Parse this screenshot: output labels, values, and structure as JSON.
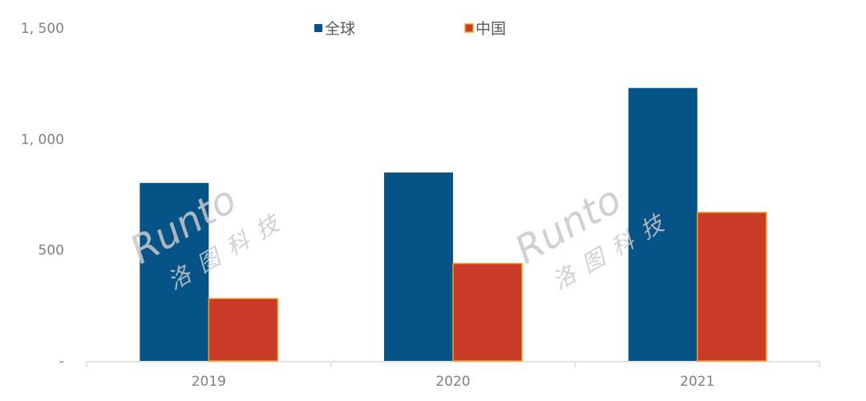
{
  "chart_data": {
    "type": "bar",
    "title": "",
    "xlabel": "",
    "ylabel": "",
    "categories": [
      "2019",
      "2020",
      "2021"
    ],
    "series": [
      {
        "name": "全球",
        "values": [
          802,
          849,
          1230
        ],
        "color": "#065487"
      },
      {
        "name": "中国",
        "values": [
          281,
          439,
          669
        ],
        "color": "#c93a28",
        "border": "#f0a020"
      }
    ],
    "ylim": [
      0,
      1500
    ],
    "yticks": [
      {
        "value": 0,
        "label": "-"
      },
      {
        "value": 500,
        "label": "500"
      },
      {
        "value": 1000,
        "label": "1, 000"
      },
      {
        "value": 1500,
        "label": "1, 500"
      }
    ],
    "grid": false,
    "legend": "top-center"
  },
  "watermark": {
    "latin": "Runto",
    "chinese": "洛图科技"
  }
}
